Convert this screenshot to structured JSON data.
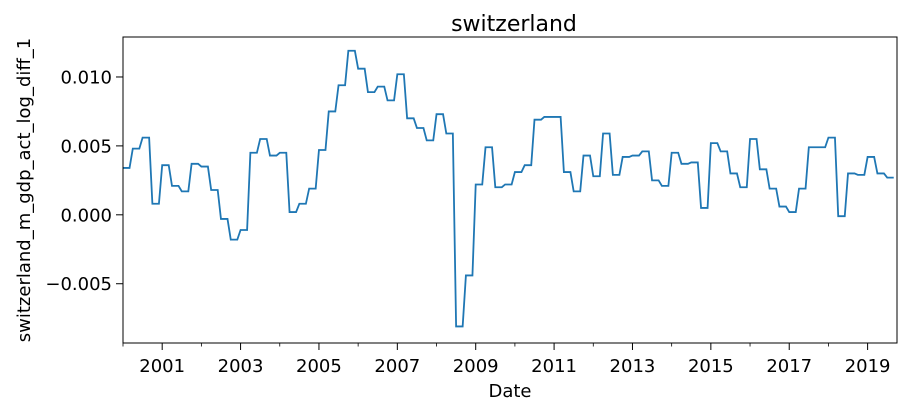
{
  "chart_data": {
    "type": "line",
    "title": "switzerland",
    "xlabel": "Date",
    "ylabel": "switzerland_m_gdp_act_log_diff_1",
    "x_start": "2000-01",
    "x_end": "2019-10",
    "xlim": [
      "2000-01",
      "2019-10"
    ],
    "ylim": [
      -0.0093,
      0.0129
    ],
    "x_ticks": [
      {
        "label": "2001",
        "value": "2001-01"
      },
      {
        "label": "2003",
        "value": "2003-01"
      },
      {
        "label": "2005",
        "value": "2005-01"
      },
      {
        "label": "2007",
        "value": "2007-01"
      },
      {
        "label": "2009",
        "value": "2009-01"
      },
      {
        "label": "2011",
        "value": "2011-01"
      },
      {
        "label": "2013",
        "value": "2013-01"
      },
      {
        "label": "2015",
        "value": "2015-01"
      },
      {
        "label": "2017",
        "value": "2017-01"
      },
      {
        "label": "2019",
        "value": "2019-01"
      }
    ],
    "y_ticks": [
      {
        "label": "0.010",
        "value": 0.01
      },
      {
        "label": "0.005",
        "value": 0.005
      },
      {
        "label": "0.000",
        "value": 0.0
      },
      {
        "label": "−0.005",
        "value": -0.005
      }
    ],
    "grid": false,
    "line_color": "#1f77b4",
    "series": [
      {
        "values": [
          [
            0,
            0.0034
          ],
          [
            2,
            0.0034
          ],
          [
            3,
            0.0048
          ],
          [
            5,
            0.0048
          ],
          [
            6,
            0.0056
          ],
          [
            8,
            0.0056
          ],
          [
            9,
            0.0008
          ],
          [
            11,
            0.0008
          ],
          [
            12,
            0.0036
          ],
          [
            14,
            0.0036
          ],
          [
            15,
            0.0021
          ],
          [
            17,
            0.0021
          ],
          [
            18,
            0.0017
          ],
          [
            20,
            0.0017
          ],
          [
            21,
            0.0037
          ],
          [
            23,
            0.0037
          ],
          [
            24,
            0.0035
          ],
          [
            26,
            0.0035
          ],
          [
            27,
            0.0018
          ],
          [
            29,
            0.0018
          ],
          [
            30,
            -0.0003
          ],
          [
            32,
            -0.0003
          ],
          [
            33,
            -0.0018
          ],
          [
            35,
            -0.0018
          ],
          [
            36,
            -0.0011
          ],
          [
            38,
            -0.0011
          ],
          [
            39,
            0.0045
          ],
          [
            41,
            0.0045
          ],
          [
            42,
            0.0055
          ],
          [
            44,
            0.0055
          ],
          [
            45,
            0.0043
          ],
          [
            47,
            0.0043
          ],
          [
            48,
            0.0045
          ],
          [
            50,
            0.0045
          ],
          [
            51,
            0.0002
          ],
          [
            53,
            0.0002
          ],
          [
            54,
            0.0008
          ],
          [
            56,
            0.0008
          ],
          [
            57,
            0.0019
          ],
          [
            59,
            0.0019
          ],
          [
            60,
            0.0047
          ],
          [
            62,
            0.0047
          ],
          [
            63,
            0.0075
          ],
          [
            65,
            0.0075
          ],
          [
            66,
            0.0094
          ],
          [
            68,
            0.0094
          ],
          [
            69,
            0.0119
          ],
          [
            71,
            0.0119
          ],
          [
            72,
            0.0106
          ],
          [
            74,
            0.0106
          ],
          [
            75,
            0.0089
          ],
          [
            77,
            0.0089
          ],
          [
            78,
            0.0093
          ],
          [
            80,
            0.0093
          ],
          [
            81,
            0.0083
          ],
          [
            83,
            0.0083
          ],
          [
            84,
            0.0102
          ],
          [
            86,
            0.0102
          ],
          [
            87,
            0.007
          ],
          [
            89,
            0.007
          ],
          [
            90,
            0.0063
          ],
          [
            92,
            0.0063
          ],
          [
            93,
            0.0054
          ],
          [
            95,
            0.0054
          ],
          [
            96,
            0.0073
          ],
          [
            98,
            0.0073
          ],
          [
            99,
            0.0059
          ],
          [
            101,
            0.0059
          ],
          [
            102,
            -0.0081
          ],
          [
            104,
            -0.0081
          ],
          [
            105,
            -0.0044
          ],
          [
            107,
            -0.0044
          ],
          [
            108,
            0.0022
          ],
          [
            110,
            0.0022
          ],
          [
            111,
            0.0049
          ],
          [
            113,
            0.0049
          ],
          [
            114,
            0.002
          ],
          [
            116,
            0.002
          ],
          [
            117,
            0.0022
          ],
          [
            119,
            0.0022
          ],
          [
            120,
            0.0031
          ],
          [
            122,
            0.0031
          ],
          [
            123,
            0.0036
          ],
          [
            125,
            0.0036
          ],
          [
            126,
            0.0069
          ],
          [
            128,
            0.0069
          ],
          [
            129,
            0.0071
          ],
          [
            131,
            0.0071
          ],
          [
            132,
            0.0071
          ],
          [
            134,
            0.0071
          ],
          [
            135,
            0.0031
          ],
          [
            137,
            0.0031
          ],
          [
            138,
            0.0017
          ],
          [
            140,
            0.0017
          ],
          [
            141,
            0.0043
          ],
          [
            143,
            0.0043
          ],
          [
            144,
            0.0028
          ],
          [
            146,
            0.0028
          ],
          [
            147,
            0.0059
          ],
          [
            149,
            0.0059
          ],
          [
            150,
            0.0029
          ],
          [
            152,
            0.0029
          ],
          [
            153,
            0.0042
          ],
          [
            155,
            0.0042
          ],
          [
            156,
            0.0043
          ],
          [
            158,
            0.0043
          ],
          [
            159,
            0.0046
          ],
          [
            161,
            0.0046
          ],
          [
            162,
            0.0025
          ],
          [
            164,
            0.0025
          ],
          [
            165,
            0.0021
          ],
          [
            167,
            0.0021
          ],
          [
            168,
            0.0045
          ],
          [
            170,
            0.0045
          ],
          [
            171,
            0.0037
          ],
          [
            173,
            0.0037
          ],
          [
            174,
            0.0038
          ],
          [
            176,
            0.0038
          ],
          [
            177,
            0.0005
          ],
          [
            179,
            0.0005
          ],
          [
            180,
            0.0052
          ],
          [
            182,
            0.0052
          ],
          [
            183,
            0.0046
          ],
          [
            185,
            0.0046
          ],
          [
            186,
            0.003
          ],
          [
            188,
            0.003
          ],
          [
            189,
            0.002
          ],
          [
            191,
            0.002
          ],
          [
            192,
            0.0055
          ],
          [
            194,
            0.0055
          ],
          [
            195,
            0.0033
          ],
          [
            197,
            0.0033
          ],
          [
            198,
            0.0019
          ],
          [
            200,
            0.0019
          ],
          [
            201,
            0.0006
          ],
          [
            203,
            0.0006
          ],
          [
            204,
            0.0002
          ],
          [
            206,
            0.0002
          ],
          [
            207,
            0.0019
          ],
          [
            209,
            0.0019
          ],
          [
            210,
            0.0049
          ],
          [
            212,
            0.0049
          ],
          [
            213,
            0.0049
          ],
          [
            215,
            0.0049
          ],
          [
            216,
            0.0056
          ],
          [
            218,
            0.0056
          ],
          [
            219,
            -0.0001
          ],
          [
            221,
            -0.0001
          ],
          [
            222,
            0.003
          ],
          [
            224,
            0.003
          ],
          [
            225,
            0.0029
          ],
          [
            227,
            0.0029
          ],
          [
            228,
            0.0042
          ],
          [
            230,
            0.0042
          ],
          [
            231,
            0.003
          ],
          [
            233,
            0.003
          ],
          [
            234,
            0.0027
          ],
          [
            236,
            0.0027
          ]
        ]
      }
    ]
  }
}
